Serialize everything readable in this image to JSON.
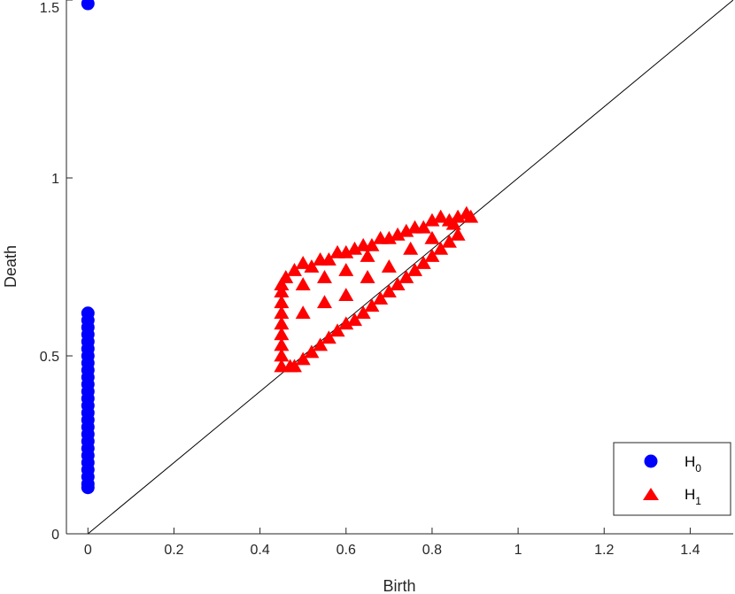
{
  "chart_data": {
    "type": "scatter",
    "title": "",
    "xlabel": "Birth",
    "ylabel": "Death",
    "xlim": [
      -0.05,
      1.5
    ],
    "ylim": [
      0,
      1.5
    ],
    "xticks": [
      0,
      0.2,
      0.4,
      0.6,
      0.8,
      1,
      1.2,
      1.4
    ],
    "xtick_labels": [
      "0",
      "0.2",
      "0.4",
      "0.6",
      "0.8",
      "1",
      "1.2",
      "1.4"
    ],
    "yticks": [
      0,
      0.5,
      1,
      1.5
    ],
    "ytick_labels": [
      "0",
      "0.5",
      "1",
      "1.5"
    ],
    "grid": false,
    "legend_position": "bottom-right",
    "diagonal": {
      "x": [
        0,
        1.5
      ],
      "y": [
        0,
        1.5
      ],
      "color": "#000000"
    },
    "series": [
      {
        "name": "H",
        "subscript": "0",
        "marker": "circle",
        "color": "#0000ff",
        "points": [
          [
            0,
            1.49
          ],
          [
            0,
            0.62
          ],
          [
            0,
            0.6
          ],
          [
            0,
            0.58
          ],
          [
            0,
            0.56
          ],
          [
            0,
            0.54
          ],
          [
            0,
            0.52
          ],
          [
            0,
            0.5
          ],
          [
            0,
            0.48
          ],
          [
            0,
            0.46
          ],
          [
            0,
            0.44
          ],
          [
            0,
            0.42
          ],
          [
            0,
            0.4
          ],
          [
            0,
            0.38
          ],
          [
            0,
            0.36
          ],
          [
            0,
            0.34
          ],
          [
            0,
            0.32
          ],
          [
            0,
            0.3
          ],
          [
            0,
            0.28
          ],
          [
            0,
            0.26
          ],
          [
            0,
            0.24
          ],
          [
            0,
            0.22
          ],
          [
            0,
            0.2
          ],
          [
            0,
            0.18
          ],
          [
            0,
            0.16
          ],
          [
            0,
            0.14
          ],
          [
            0,
            0.13
          ]
        ]
      },
      {
        "name": "H",
        "subscript": "1",
        "marker": "triangle",
        "color": "#ff0000",
        "points": [
          [
            0.45,
            0.47
          ],
          [
            0.45,
            0.5
          ],
          [
            0.45,
            0.53
          ],
          [
            0.45,
            0.56
          ],
          [
            0.45,
            0.59
          ],
          [
            0.45,
            0.62
          ],
          [
            0.45,
            0.65
          ],
          [
            0.45,
            0.68
          ],
          [
            0.45,
            0.7
          ],
          [
            0.46,
            0.72
          ],
          [
            0.47,
            0.47
          ],
          [
            0.48,
            0.74
          ],
          [
            0.48,
            0.47
          ],
          [
            0.5,
            0.76
          ],
          [
            0.5,
            0.49
          ],
          [
            0.52,
            0.75
          ],
          [
            0.52,
            0.51
          ],
          [
            0.54,
            0.77
          ],
          [
            0.54,
            0.53
          ],
          [
            0.56,
            0.77
          ],
          [
            0.56,
            0.55
          ],
          [
            0.58,
            0.79
          ],
          [
            0.58,
            0.57
          ],
          [
            0.6,
            0.79
          ],
          [
            0.6,
            0.59
          ],
          [
            0.62,
            0.8
          ],
          [
            0.62,
            0.6
          ],
          [
            0.64,
            0.81
          ],
          [
            0.64,
            0.62
          ],
          [
            0.66,
            0.81
          ],
          [
            0.66,
            0.64
          ],
          [
            0.68,
            0.83
          ],
          [
            0.68,
            0.66
          ],
          [
            0.7,
            0.83
          ],
          [
            0.7,
            0.68
          ],
          [
            0.72,
            0.84
          ],
          [
            0.72,
            0.7
          ],
          [
            0.74,
            0.85
          ],
          [
            0.74,
            0.72
          ],
          [
            0.76,
            0.86
          ],
          [
            0.76,
            0.74
          ],
          [
            0.78,
            0.86
          ],
          [
            0.78,
            0.76
          ],
          [
            0.8,
            0.88
          ],
          [
            0.8,
            0.78
          ],
          [
            0.82,
            0.89
          ],
          [
            0.82,
            0.8
          ],
          [
            0.84,
            0.88
          ],
          [
            0.84,
            0.82
          ],
          [
            0.86,
            0.89
          ],
          [
            0.86,
            0.84
          ],
          [
            0.88,
            0.9
          ],
          [
            0.89,
            0.89
          ],
          [
            0.5,
            0.62
          ],
          [
            0.5,
            0.7
          ],
          [
            0.55,
            0.65
          ],
          [
            0.55,
            0.72
          ],
          [
            0.6,
            0.67
          ],
          [
            0.6,
            0.74
          ],
          [
            0.65,
            0.72
          ],
          [
            0.65,
            0.78
          ],
          [
            0.7,
            0.75
          ],
          [
            0.75,
            0.8
          ],
          [
            0.8,
            0.83
          ],
          [
            0.85,
            0.87
          ]
        ]
      }
    ]
  }
}
